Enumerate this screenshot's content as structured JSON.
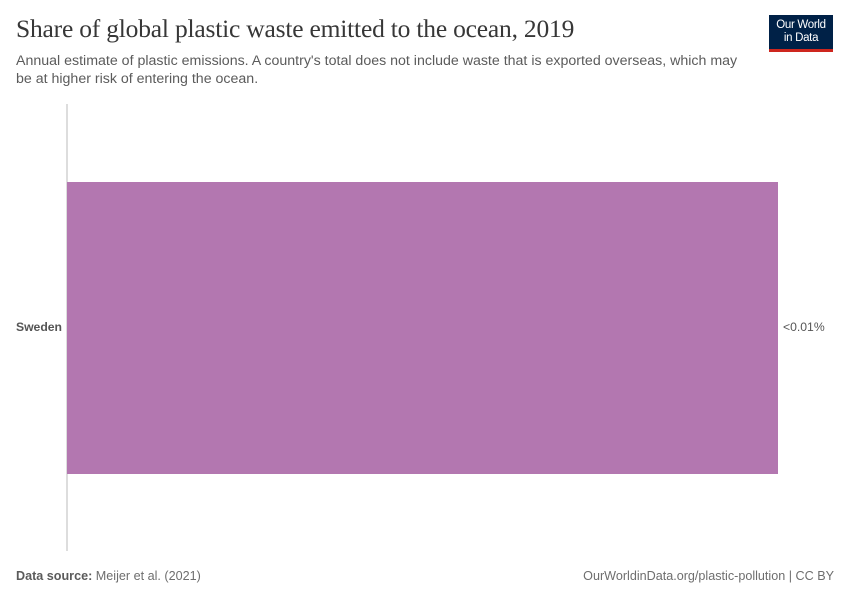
{
  "header": {
    "title": "Share of global plastic waste emitted to the ocean, 2019",
    "subtitle": "Annual estimate of plastic emissions. A country's total does not include waste that is exported overseas, which may be at higher risk of entering the ocean."
  },
  "logo": {
    "line1": "Our World",
    "line2": "in Data",
    "bg_color": "#002147",
    "accent_color": "#ce261e"
  },
  "footer": {
    "source_label": "Data source:",
    "source_value": "Meijer et al. (2021)",
    "right_text": "OurWorldinData.org/plastic-pollution | CC BY"
  },
  "colors": {
    "bar": "#b377b0",
    "axis": "#dddddd"
  },
  "chart_data": {
    "type": "bar",
    "orientation": "horizontal",
    "title": "Share of global plastic waste emitted to the ocean, 2019",
    "subtitle": "Annual estimate of plastic emissions. A country's total does not include waste that is exported overseas, which may be at higher risk of entering the ocean.",
    "categories": [
      "Sweden"
    ],
    "values": [
      0.01
    ],
    "value_labels": [
      "<0.01%"
    ],
    "unit": "%",
    "xlabel": "",
    "ylabel": "",
    "grid": false,
    "legend": null,
    "source": "Meijer et al. (2021)"
  }
}
